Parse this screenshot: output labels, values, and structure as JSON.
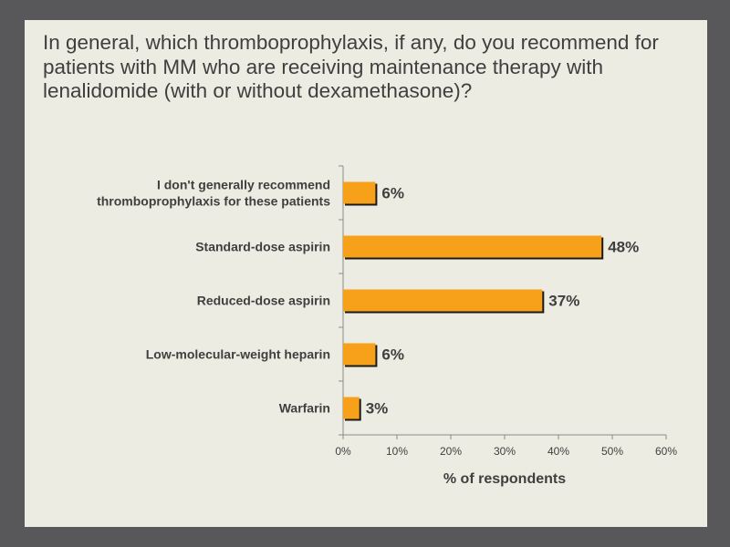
{
  "slide": {
    "title": "In general, which thromboprophylaxis, if any, do you recommend for patients with MM who are receiving maintenance therapy with lenalidomide (with or without dexamethasone)?"
  },
  "colors": {
    "background": "#58585a",
    "slide": "#ecece2",
    "bar": "#f7a11a",
    "bar_shadow": "#1a1a1a",
    "axis": "#8c8c8c",
    "text": "#3f3f3f"
  },
  "chart_data": {
    "type": "bar",
    "orientation": "horizontal",
    "title": "",
    "xlabel": "% of respondents",
    "ylabel": "",
    "xlim": [
      0,
      60
    ],
    "grid": false,
    "categories": [
      [
        "I don't generally recommend",
        "thromboprophylaxis for these patients"
      ],
      [
        "Standard-dose aspirin"
      ],
      [
        "Reduced-dose aspirin"
      ],
      [
        "Low-molecular-weight heparin"
      ],
      [
        "Warfarin"
      ]
    ],
    "values": [
      6,
      48,
      37,
      6,
      3
    ],
    "data_labels": [
      "6%",
      "48%",
      "37%",
      "6%",
      "3%"
    ],
    "xticks": [
      0,
      10,
      20,
      30,
      40,
      50,
      60
    ],
    "xtick_labels": [
      "0%",
      "10%",
      "20%",
      "30%",
      "40%",
      "50%",
      "60%"
    ]
  }
}
